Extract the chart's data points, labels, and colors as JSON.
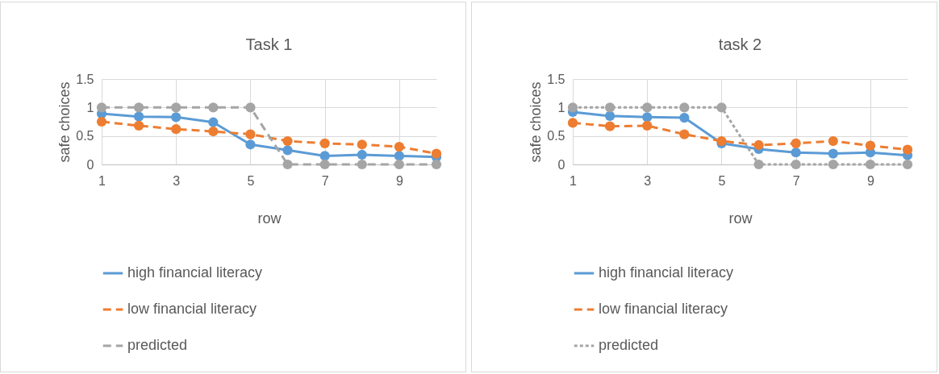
{
  "chart_data": [
    {
      "type": "line",
      "title": "Task 1",
      "xlabel": "row",
      "ylabel": "safe choices",
      "x": [
        1,
        2,
        3,
        4,
        5,
        6,
        7,
        8,
        9,
        10
      ],
      "xlim": [
        1,
        10
      ],
      "xticks": [
        1,
        3,
        5,
        7,
        9
      ],
      "ylim": [
        0,
        1.5
      ],
      "yticks": [
        0,
        0.5,
        1,
        1.5
      ],
      "grid": true,
      "legend": "bottom",
      "marker": "circle",
      "series": [
        {
          "name": "high financial literacy",
          "color": "#5b9bd5",
          "line_style": "solid",
          "values": [
            0.89,
            0.84,
            0.83,
            0.74,
            0.35,
            0.25,
            0.15,
            0.17,
            0.15,
            0.13
          ]
        },
        {
          "name": "low financial literacy",
          "color": "#ed7d31",
          "line_style": "dashed",
          "values": [
            0.75,
            0.68,
            0.62,
            0.58,
            0.53,
            0.41,
            0.37,
            0.35,
            0.31,
            0.19
          ]
        },
        {
          "name": "predicted",
          "color": "#a5a5a5",
          "line_style": "dashed",
          "values": [
            1,
            1,
            1,
            1,
            1,
            0,
            0,
            0,
            0,
            0
          ]
        }
      ]
    },
    {
      "type": "line",
      "title": "task 2",
      "xlabel": "row",
      "ylabel": "safe choices",
      "x": [
        1,
        2,
        3,
        4,
        5,
        6,
        7,
        8,
        9,
        10
      ],
      "xlim": [
        1,
        10
      ],
      "xticks": [
        1,
        3,
        5,
        7,
        9
      ],
      "ylim": [
        0,
        1.5
      ],
      "yticks": [
        0,
        0.5,
        1,
        1.5
      ],
      "grid": true,
      "legend": "bottom",
      "marker": "circle",
      "series": [
        {
          "name": "high financial literacy",
          "color": "#5b9bd5",
          "line_style": "solid",
          "values": [
            0.92,
            0.85,
            0.83,
            0.82,
            0.37,
            0.27,
            0.21,
            0.19,
            0.21,
            0.16
          ]
        },
        {
          "name": "low financial literacy",
          "color": "#ed7d31",
          "line_style": "dashed",
          "values": [
            0.73,
            0.67,
            0.68,
            0.53,
            0.41,
            0.34,
            0.37,
            0.41,
            0.33,
            0.26
          ]
        },
        {
          "name": "predicted",
          "color": "#a5a5a5",
          "line_style": "dotted",
          "values": [
            1,
            1,
            1,
            1,
            1,
            0,
            0,
            0,
            0,
            0
          ]
        }
      ]
    }
  ]
}
